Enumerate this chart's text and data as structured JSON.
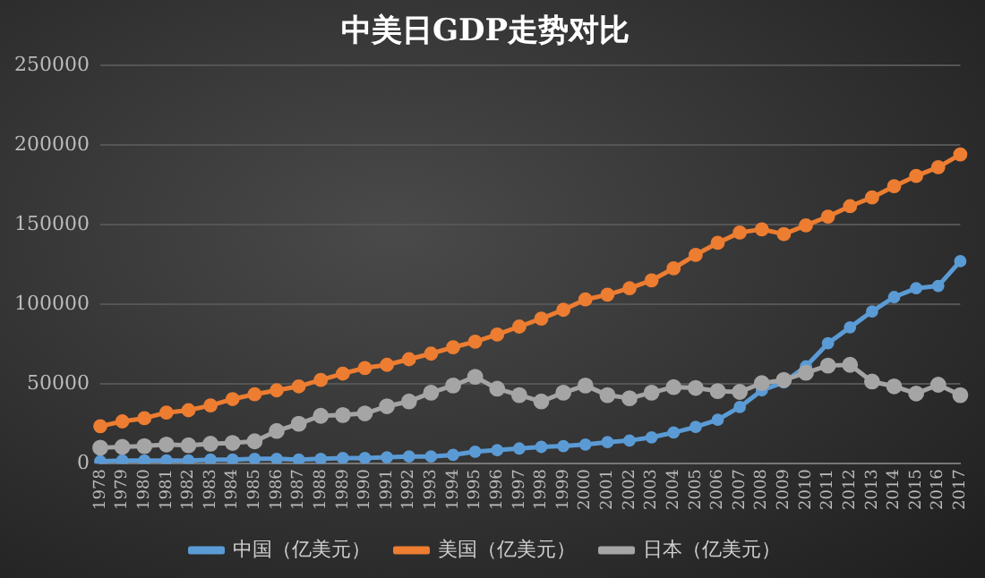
{
  "chart_data": {
    "type": "line",
    "title": "中美日GDP走势对比",
    "categories": [
      "1978",
      "1979",
      "1980",
      "1981",
      "1982",
      "1983",
      "1984",
      "1985",
      "1986",
      "1987",
      "1988",
      "1989",
      "1990",
      "1991",
      "1992",
      "1993",
      "1994",
      "1995",
      "1996",
      "1997",
      "1998",
      "1999",
      "2000",
      "2001",
      "2002",
      "2003",
      "2004",
      "2005",
      "2006",
      "2007",
      "2008",
      "2009",
      "2010",
      "2011",
      "2012",
      "2013",
      "2014",
      "2015",
      "2016",
      "2017"
    ],
    "series": [
      {
        "name": "中国（亿美元）",
        "color": "#5b9bd5",
        "values": [
          1500,
          2000,
          2000,
          2000,
          2000,
          2500,
          2500,
          3000,
          3000,
          2500,
          3000,
          3500,
          3500,
          4000,
          4500,
          4500,
          5500,
          7500,
          8500,
          9500,
          10500,
          11000,
          12000,
          13500,
          14500,
          16500,
          19500,
          23000,
          27500,
          35500,
          46000,
          51000,
          61000,
          75500,
          85500,
          95500,
          104500,
          110000,
          111500,
          127000
        ]
      },
      {
        "name": "美国（亿美元）",
        "color": "#ed7d31",
        "values": [
          23500,
          26500,
          28500,
          32000,
          33500,
          36500,
          40500,
          43500,
          46000,
          48500,
          52500,
          56500,
          60000,
          62000,
          65500,
          69000,
          73000,
          76500,
          81000,
          86000,
          91000,
          96500,
          103000,
          106000,
          110000,
          115000,
          122500,
          131000,
          138500,
          145000,
          147000,
          144000,
          149500,
          155000,
          161500,
          167000,
          174000,
          180500,
          186000,
          194000
        ]
      },
      {
        "name": "日本（亿美元）",
        "color": "#a5a5a5",
        "values": [
          10000,
          10500,
          11000,
          12000,
          11500,
          12500,
          13000,
          14000,
          20500,
          25000,
          30000,
          30500,
          31500,
          36000,
          39000,
          44500,
          49000,
          54500,
          47000,
          43000,
          39000,
          44500,
          49000,
          43000,
          41000,
          44500,
          48000,
          47500,
          45500,
          45000,
          50500,
          52500,
          57000,
          61500,
          62000,
          51500,
          48500,
          44000,
          49500,
          43000
        ]
      }
    ],
    "ylim": [
      0,
      250000
    ],
    "yticks": [
      0,
      50000,
      100000,
      150000,
      200000,
      250000
    ],
    "grid": "y",
    "legend": "bottom",
    "marker": "circle",
    "line_style": "solid"
  }
}
